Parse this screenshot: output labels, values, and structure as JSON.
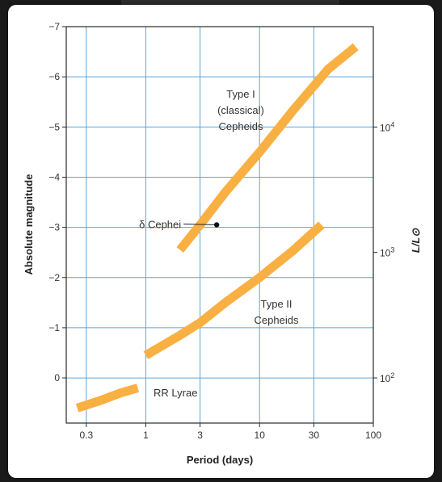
{
  "chart_data": {
    "type": "line",
    "xlabel": "Period (days)",
    "ylabel": "Absolute magnitude",
    "y2label": "L/L⊙",
    "x_scale": "log",
    "xlim": [
      0.2,
      100
    ],
    "ylim": [
      0.9,
      -7
    ],
    "x_ticks": [
      0.3,
      1,
      3,
      10,
      30,
      100
    ],
    "x_tick_labels": [
      "0.3",
      "1",
      "3",
      "10",
      "30",
      "100"
    ],
    "y_ticks": [
      -7,
      -6,
      -5,
      -4,
      -3,
      -2,
      -1,
      0
    ],
    "y_tick_labels": [
      "−7",
      "−6",
      "−5",
      "−4",
      "−3",
      "−2",
      "−1",
      "0"
    ],
    "y2_ticks": [
      {
        "base": "10",
        "exp": "4",
        "mag": -5.0
      },
      {
        "base": "10",
        "exp": "3",
        "mag": -2.5
      },
      {
        "base": "10",
        "exp": "2",
        "mag": 0.0
      }
    ],
    "grid": true,
    "band_color": "#F9B042",
    "series": [
      {
        "name": "Type I (classical) Cepheids",
        "x": [
          2,
          3,
          5,
          10,
          20,
          40,
          70
        ],
        "y": [
          -2.55,
          -3.05,
          -3.7,
          -4.5,
          -5.35,
          -6.15,
          -6.6
        ]
      },
      {
        "name": "Type II Cepheids",
        "x": [
          1,
          2,
          3,
          5,
          10,
          20,
          35
        ],
        "y": [
          -0.45,
          -0.85,
          -1.1,
          -1.5,
          -2.0,
          -2.55,
          -3.05
        ]
      },
      {
        "name": "RR Lyrae",
        "x": [
          0.25,
          0.4,
          0.6,
          0.85
        ],
        "y": [
          0.6,
          0.45,
          0.3,
          0.2
        ]
      }
    ],
    "series_labels": {
      "type1": [
        "Type I",
        "(classical)",
        "Cepheids"
      ],
      "type2": [
        "Type II",
        "Cepheids"
      ],
      "rr": "RR Lyrae"
    },
    "annotations": [
      {
        "text": "δ Cephei",
        "x": 4.2,
        "y": -3.05
      }
    ]
  }
}
